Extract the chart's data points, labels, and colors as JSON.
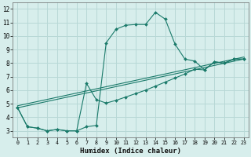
{
  "xlabel": "Humidex (Indice chaleur)",
  "bg_color": "#d7eeec",
  "grid_color": "#b8d8d6",
  "line_color": "#1a7a6a",
  "xlim": [
    -0.5,
    23.5
  ],
  "ylim": [
    2.5,
    12.5
  ],
  "xticks": [
    0,
    1,
    2,
    3,
    4,
    5,
    6,
    7,
    8,
    9,
    10,
    11,
    12,
    13,
    14,
    15,
    16,
    17,
    18,
    19,
    20,
    21,
    22,
    23
  ],
  "yticks": [
    3,
    4,
    5,
    6,
    7,
    8,
    9,
    10,
    11,
    12
  ],
  "curve_main_x": [
    0,
    1,
    2,
    3,
    4,
    5,
    6,
    7,
    8,
    9,
    10,
    11,
    12,
    13,
    14,
    15,
    16,
    17,
    18,
    19,
    20,
    21,
    22,
    23
  ],
  "curve_main_y": [
    4.7,
    3.3,
    3.2,
    3.0,
    3.1,
    3.0,
    3.0,
    3.3,
    3.4,
    9.5,
    10.5,
    10.8,
    10.85,
    10.85,
    11.75,
    11.25,
    9.4,
    8.3,
    8.15,
    7.5,
    8.1,
    8.0,
    8.3,
    8.3
  ],
  "curve_bump_x": [
    0,
    1,
    2,
    3,
    4,
    5,
    6,
    7,
    8,
    9,
    10,
    11,
    12,
    13,
    14,
    15,
    16,
    17,
    18,
    19,
    20,
    21,
    22,
    23
  ],
  "curve_bump_y": [
    4.7,
    3.3,
    3.2,
    3.0,
    3.1,
    3.0,
    3.0,
    6.5,
    5.3,
    5.05,
    5.25,
    5.5,
    5.75,
    6.0,
    6.3,
    6.6,
    6.9,
    7.2,
    7.55,
    7.5,
    8.1,
    8.0,
    8.3,
    8.3
  ],
  "line1_x": [
    0,
    23
  ],
  "line1_y": [
    4.7,
    8.3
  ],
  "line2_x": [
    0,
    23
  ],
  "line2_y": [
    4.85,
    8.45
  ]
}
